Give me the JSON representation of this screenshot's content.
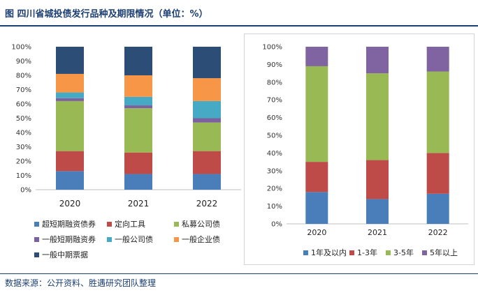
{
  "title": "图  四川省城投债发行品种及期限情况（单位：%）",
  "source": "数据来源：公开资料、胜遇研究团队整理",
  "chart_data": [
    {
      "type": "bar",
      "stacked": true,
      "categories": [
        "2020",
        "2021",
        "2022"
      ],
      "ylim": [
        0,
        100
      ],
      "yticks": [
        "0%",
        "10%",
        "20%",
        "30%",
        "40%",
        "50%",
        "60%",
        "70%",
        "80%",
        "90%",
        "100%"
      ],
      "legend_position": "bottom",
      "series": [
        {
          "name": "超短期融资债券",
          "color": "#4a7ebb",
          "values": [
            13,
            11,
            11
          ]
        },
        {
          "name": "定向工具",
          "color": "#be4b48",
          "values": [
            14,
            15,
            16
          ]
        },
        {
          "name": "私募公司债",
          "color": "#98b954",
          "values": [
            35,
            31,
            20
          ]
        },
        {
          "name": "一般短期融资券",
          "color": "#7d60a0",
          "values": [
            2,
            2,
            3
          ]
        },
        {
          "name": "一般公司债",
          "color": "#46aac5",
          "values": [
            4,
            6,
            12
          ]
        },
        {
          "name": "一般企业债",
          "color": "#f79646",
          "values": [
            13,
            15,
            16
          ]
        },
        {
          "name": "一般中期票据",
          "color": "#2c4d75",
          "values": [
            19,
            20,
            22
          ]
        }
      ]
    },
    {
      "type": "bar",
      "stacked": true,
      "categories": [
        "2020",
        "2021",
        "2022"
      ],
      "ylim": [
        0,
        100
      ],
      "yticks": [
        "0%",
        "10%",
        "20%",
        "30%",
        "40%",
        "50%",
        "60%",
        "70%",
        "80%",
        "90%",
        "100%"
      ],
      "legend_position": "bottom",
      "series": [
        {
          "name": "1年及以内",
          "color": "#4a7ebb",
          "values": [
            18,
            14,
            17
          ]
        },
        {
          "name": "1-3年",
          "color": "#be4b48",
          "values": [
            17,
            22,
            23
          ]
        },
        {
          "name": "3-5年",
          "color": "#98b954",
          "values": [
            54,
            49,
            46
          ]
        },
        {
          "name": "5年以上",
          "color": "#8064a2",
          "values": [
            11,
            15,
            14
          ]
        }
      ]
    }
  ]
}
